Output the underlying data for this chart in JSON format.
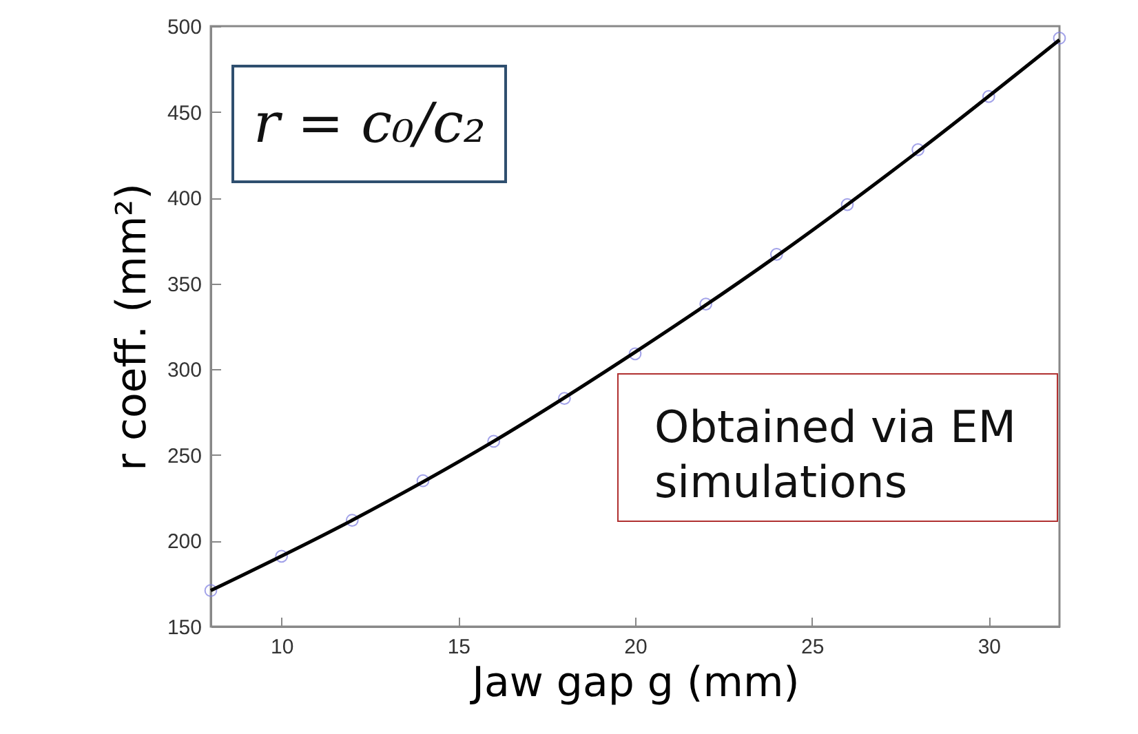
{
  "chart_data": {
    "type": "scatter",
    "xlabel": "Jaw gap g (mm)",
    "ylabel": "r coeff. (mm²)",
    "xlim": [
      8,
      32
    ],
    "xticks": [
      10,
      15,
      20,
      25,
      30
    ],
    "ylim": [
      150,
      500
    ],
    "yticks": [
      150,
      200,
      250,
      300,
      350,
      400,
      450,
      500
    ],
    "annotations": [
      "r = c₀/c₂",
      "Obtained via EM simulations"
    ],
    "series": [
      {
        "marker": "circle",
        "color": "#7b7be0",
        "x": [
          8,
          10,
          12,
          14,
          16,
          18,
          20,
          22,
          24,
          26,
          28,
          30,
          32
        ],
        "values": [
          171,
          191,
          212,
          235,
          258,
          283,
          309,
          338,
          367,
          396,
          428,
          459,
          493
        ]
      },
      {
        "type": "line",
        "color": "#000000",
        "line_style": "solid",
        "x": [
          8,
          12,
          16,
          20,
          24,
          28,
          32
        ],
        "values": [
          171,
          212,
          258,
          310,
          366,
          427,
          492
        ]
      }
    ]
  }
}
